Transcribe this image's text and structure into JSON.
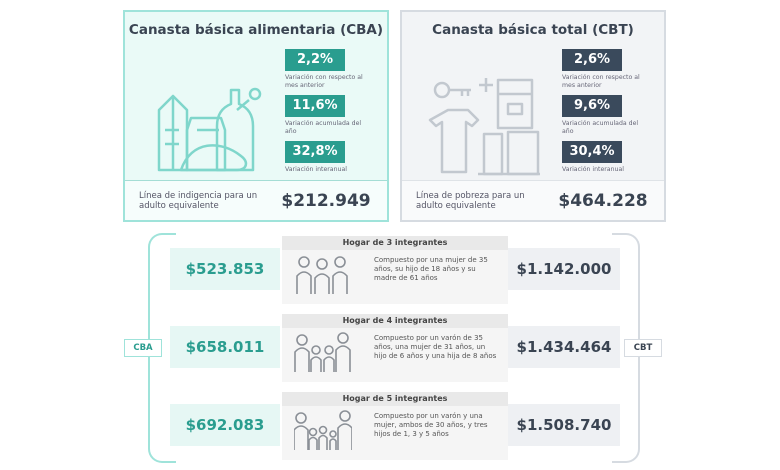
{
  "cba": {
    "title": "Canasta básica alimentaria (CBA)",
    "stats": [
      {
        "value": "2,2%",
        "caption": "Variación con respecto al mes anterior"
      },
      {
        "value": "11,6%",
        "caption": "Variación acumulada del año"
      },
      {
        "value": "32,8%",
        "caption": "Variación interanual"
      }
    ],
    "footer_label": "Línea de indigencia para un adulto equivalente",
    "footer_value": "$212.949",
    "tag": "CBA"
  },
  "cbt": {
    "title": "Canasta básica total (CBT)",
    "stats": [
      {
        "value": "2,6%",
        "caption": "Variación con respecto al mes anterior"
      },
      {
        "value": "9,6%",
        "caption": "Variación acumulada del año"
      },
      {
        "value": "30,4%",
        "caption": "Variación interanual"
      }
    ],
    "footer_label": "Línea de pobreza para un adulto equivalente",
    "footer_value": "$464.228",
    "tag": "CBT"
  },
  "households": [
    {
      "title": "Hogar de 3 integrantes",
      "description": "Compuesto por una mujer de 35 años, su hijo de 18 años y su madre de 61 años",
      "cba": "$523.853",
      "cbt": "$1.142.000"
    },
    {
      "title": "Hogar de 4 integrantes",
      "description": "Compuesto por un varón de 35 años, una mujer de 31 años, un hijo de 6 años y una hija de 8 años",
      "cba": "$658.011",
      "cbt": "$1.434.464"
    },
    {
      "title": "Hogar de 5 integrantes",
      "description": "Compuesto por un varón y una mujer, ambos de 30 años, y tres hijos de 1, 3 y 5 años",
      "cba": "$692.083",
      "cbt": "$1.508.740"
    }
  ],
  "colors": {
    "cba_accent": "#2a9d8f",
    "cba_border": "#9fe3da",
    "cbt_accent": "#3a4a5c",
    "cbt_border": "#d6dbe1"
  }
}
